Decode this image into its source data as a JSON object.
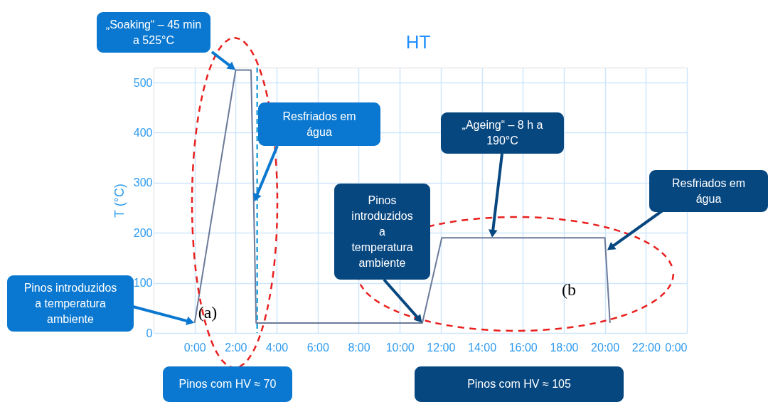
{
  "chart_data": {
    "type": "line",
    "title": "HT",
    "ylabel": "T (°C)",
    "x": [
      0,
      2,
      2.75,
      3,
      11.1,
      12.05,
      20,
      20.25
    ],
    "series": [
      {
        "color": "#6b7a99",
        "values": [
          20,
          525,
          525,
          20,
          20,
          190,
          190,
          20
        ]
      }
    ],
    "xlim": [
      -2,
      24
    ],
    "xticks": [
      {
        "value": 0,
        "label": "0:00"
      },
      {
        "value": 2,
        "label": "2:00"
      },
      {
        "value": 4,
        "label": "4:00"
      },
      {
        "value": 6,
        "label": "6:00"
      },
      {
        "value": 8,
        "label": "8:00"
      },
      {
        "value": 10,
        "label": "10:00"
      },
      {
        "value": 12,
        "label": "12:00"
      },
      {
        "value": 14,
        "label": "14:00"
      },
      {
        "value": 16,
        "label": "16:00"
      },
      {
        "value": 18,
        "label": "18:00"
      },
      {
        "value": 20,
        "label": "20:00"
      },
      {
        "value": 22,
        "label": "22:00"
      },
      {
        "value": 24,
        "label": "0:00"
      }
    ],
    "ylim": [
      0,
      530
    ],
    "yticks": [
      0,
      100,
      200,
      300,
      400,
      500
    ],
    "grid": true,
    "marker": "none",
    "line_style": "solid",
    "ref_lines": [
      {
        "axis": "x",
        "value": 3.05,
        "label": null,
        "color": "#29a3dd",
        "line_style": "dashed"
      }
    ],
    "annotations": [
      {
        "text": "„Soaking“ – 45 min\na 525°C",
        "x": 2,
        "y": 525
      },
      {
        "text": "Resfriados em\nágua",
        "x": 2.9,
        "y": 262
      },
      {
        "text": "„Ageing“ – 8 h a\n190°C",
        "x": 14.5,
        "y": 190
      },
      {
        "text": "Resfriados em\nágua",
        "x": 20.1,
        "y": 165
      },
      {
        "text": "Pinos\nintroduzidos\na\ntemperatura\nambiente",
        "x": 11.1,
        "y": 20
      },
      {
        "text": "Pinos introduzidos\na temperatura\nambiente",
        "x": 0,
        "y": 20
      },
      "Pinos com HV ≈ 70",
      "Pinos com HV ≈ 105",
      "(a)",
      "(b"
    ]
  }
}
